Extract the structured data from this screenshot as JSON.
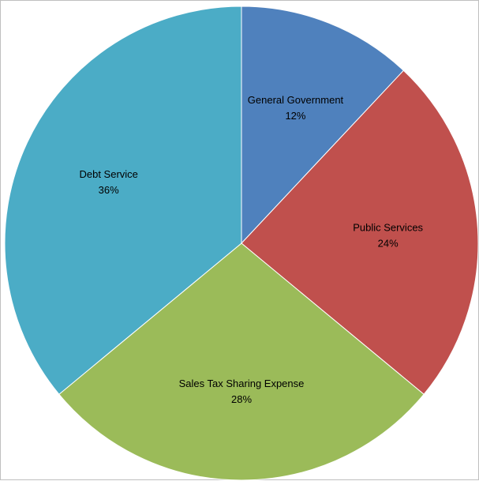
{
  "chart_data": {
    "type": "pie",
    "title": "",
    "categories": [
      "General Government",
      "Public Services",
      "Sales Tax Sharing Expense",
      "Debt Service"
    ],
    "values": [
      12,
      24,
      28,
      36
    ],
    "value_labels": [
      "12%",
      "24%",
      "28%",
      "36%"
    ],
    "colors": [
      "#4F81BD",
      "#C0504D",
      "#9BBB59",
      "#4BACC6"
    ],
    "start_angle": "12 o'clock",
    "direction": "clockwise",
    "legend": "none",
    "data_labels": "category name and percentage, inside slices"
  }
}
